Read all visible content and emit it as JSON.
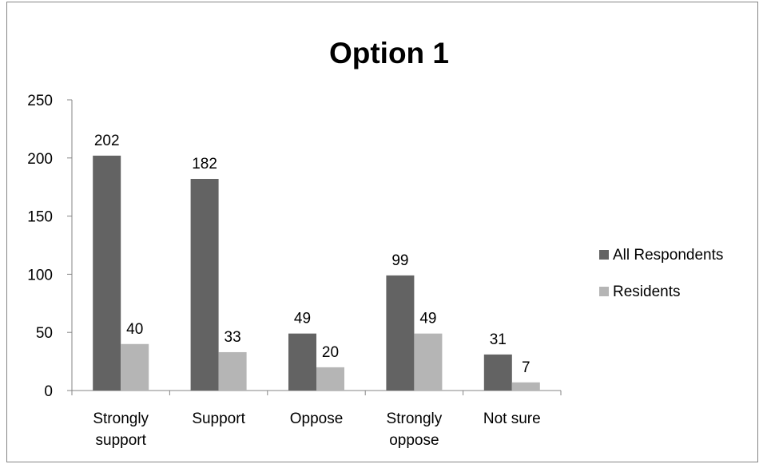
{
  "chart_data": {
    "type": "bar",
    "title": "Option 1",
    "categories": [
      "Strongly support",
      "Support",
      "Oppose",
      "Strongly oppose",
      "Not sure"
    ],
    "category_lines": [
      [
        "Strongly",
        "support"
      ],
      [
        "Support"
      ],
      [
        "Oppose"
      ],
      [
        "Strongly",
        "oppose"
      ],
      [
        "Not sure"
      ]
    ],
    "series": [
      {
        "name": "All Respondents",
        "values": [
          202,
          182,
          49,
          99,
          31
        ],
        "color": "#636363"
      },
      {
        "name": "Residents",
        "values": [
          40,
          33,
          20,
          49,
          7
        ],
        "color": "#b5b5b5"
      }
    ],
    "ylim": [
      0,
      250
    ],
    "yticks": [
      0,
      50,
      100,
      150,
      200,
      250
    ],
    "grid": false,
    "legend_position": "right"
  }
}
